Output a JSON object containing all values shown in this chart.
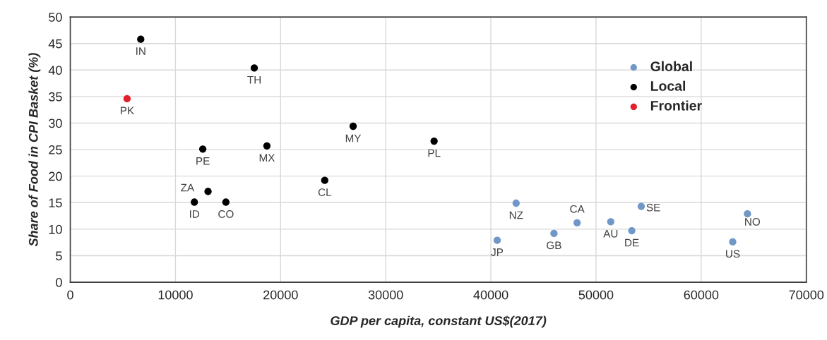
{
  "chart_data": {
    "type": "scatter",
    "xlabel": "GDP per capita, constant US$(2017)",
    "ylabel": "Share of Food in CPI Basket (%)",
    "xlim": [
      0,
      70000
    ],
    "xticks": [
      0,
      10000,
      20000,
      30000,
      40000,
      50000,
      60000,
      70000
    ],
    "ylim": [
      0,
      50
    ],
    "yticks": [
      0,
      5,
      10,
      15,
      20,
      25,
      30,
      35,
      40,
      45,
      50
    ],
    "grid": true,
    "legend": "top right",
    "marker": "circle",
    "series": [
      {
        "name": "Global",
        "color": "#6f97c8",
        "x": [
          42400,
          40600,
          46000,
          48200,
          51400,
          53400,
          54300,
          63000,
          64400
        ],
        "values": [
          14.9,
          7.9,
          9.2,
          11.2,
          11.4,
          9.7,
          14.3,
          7.6,
          12.9
        ]
      },
      {
        "name": "Local",
        "color": "#000000",
        "x": [
          6700,
          17500,
          12600,
          18700,
          26900,
          34600,
          24200,
          13100,
          11800,
          14800
        ],
        "values": [
          45.8,
          40.4,
          25.1,
          25.7,
          29.4,
          26.6,
          19.2,
          17.1,
          15.1,
          15.1
        ]
      },
      {
        "name": "Frontier",
        "color": "#e0202a",
        "x": [
          5400
        ],
        "values": [
          34.6
        ]
      }
    ],
    "annotations": [
      {
        "text": "IN",
        "x": 6700,
        "y": 45.8
      },
      {
        "text": "PK",
        "x": 5400,
        "y": 34.6
      },
      {
        "text": "TH",
        "x": 17500,
        "y": 40.4
      },
      {
        "text": "PE",
        "x": 12600,
        "y": 25.1
      },
      {
        "text": "MX",
        "x": 18700,
        "y": 25.7
      },
      {
        "text": "MY",
        "x": 26900,
        "y": 29.4
      },
      {
        "text": "PL",
        "x": 34600,
        "y": 26.6
      },
      {
        "text": "CL",
        "x": 24200,
        "y": 19.2
      },
      {
        "text": "ZA",
        "x": 13100,
        "y": 17.1
      },
      {
        "text": "ID",
        "x": 11800,
        "y": 15.1
      },
      {
        "text": "CO",
        "x": 14800,
        "y": 15.1
      },
      {
        "text": "NZ",
        "x": 42400,
        "y": 14.9
      },
      {
        "text": "JP",
        "x": 40600,
        "y": 7.9
      },
      {
        "text": "GB",
        "x": 46000,
        "y": 9.2
      },
      {
        "text": "CA",
        "x": 48200,
        "y": 11.2
      },
      {
        "text": "AU",
        "x": 51400,
        "y": 11.4
      },
      {
        "text": "DE",
        "x": 53400,
        "y": 9.7
      },
      {
        "text": "SE",
        "x": 54300,
        "y": 14.3
      },
      {
        "text": "US",
        "x": 63000,
        "y": 7.6
      },
      {
        "text": "NO",
        "x": 64400,
        "y": 12.9
      }
    ]
  }
}
